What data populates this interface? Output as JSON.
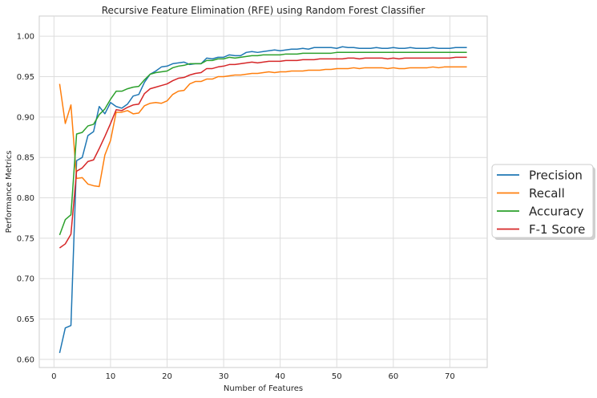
{
  "chart_data": {
    "type": "line",
    "title": "Recursive Feature Elimination (RFE) using Random Forest Classifier",
    "xlabel": "Number of Features",
    "ylabel": "Performance Metrics",
    "xlim": [
      -2.6,
      76.6
    ],
    "ylim": [
      0.59,
      1.025
    ],
    "xticks": [
      0,
      10,
      20,
      30,
      40,
      50,
      60,
      70
    ],
    "yticks": [
      0.6,
      0.65,
      0.7,
      0.75,
      0.8,
      0.85,
      0.9,
      0.95,
      1.0
    ],
    "ytick_labels": [
      "0.60",
      "0.65",
      "0.70",
      "0.75",
      "0.80",
      "0.85",
      "0.90",
      "0.95",
      "1.00"
    ],
    "grid": true,
    "legend_position": "outside-right",
    "x": [
      1,
      2,
      3,
      4,
      5,
      6,
      7,
      8,
      9,
      10,
      11,
      12,
      13,
      14,
      15,
      16,
      17,
      18,
      19,
      20,
      21,
      22,
      23,
      24,
      25,
      26,
      27,
      28,
      29,
      30,
      31,
      32,
      33,
      34,
      35,
      36,
      37,
      38,
      39,
      40,
      41,
      42,
      43,
      44,
      45,
      46,
      47,
      48,
      49,
      50,
      51,
      52,
      53,
      54,
      55,
      56,
      57,
      58,
      59,
      60,
      61,
      62,
      63,
      64,
      65,
      66,
      67,
      68,
      69,
      70,
      71,
      72,
      73
    ],
    "series": [
      {
        "name": "Precision",
        "color": "#1f77b4",
        "values": [
          0.608,
          0.639,
          0.642,
          0.846,
          0.85,
          0.877,
          0.882,
          0.913,
          0.904,
          0.918,
          0.913,
          0.911,
          0.916,
          0.926,
          0.928,
          0.943,
          0.953,
          0.957,
          0.962,
          0.963,
          0.966,
          0.967,
          0.968,
          0.965,
          0.966,
          0.966,
          0.973,
          0.972,
          0.974,
          0.974,
          0.977,
          0.976,
          0.976,
          0.98,
          0.981,
          0.98,
          0.981,
          0.982,
          0.983,
          0.982,
          0.983,
          0.984,
          0.984,
          0.985,
          0.984,
          0.986,
          0.986,
          0.986,
          0.986,
          0.985,
          0.987,
          0.986,
          0.986,
          0.985,
          0.985,
          0.985,
          0.986,
          0.985,
          0.985,
          0.986,
          0.985,
          0.985,
          0.986,
          0.985,
          0.985,
          0.985,
          0.986,
          0.985,
          0.985,
          0.985,
          0.986,
          0.986,
          0.986
        ]
      },
      {
        "name": "Recall",
        "color": "#ff7f0e",
        "values": [
          0.941,
          0.892,
          0.915,
          0.824,
          0.825,
          0.817,
          0.815,
          0.814,
          0.853,
          0.871,
          0.906,
          0.906,
          0.908,
          0.904,
          0.905,
          0.914,
          0.917,
          0.918,
          0.917,
          0.92,
          0.928,
          0.932,
          0.933,
          0.941,
          0.944,
          0.944,
          0.947,
          0.947,
          0.95,
          0.95,
          0.951,
          0.952,
          0.952,
          0.953,
          0.954,
          0.954,
          0.955,
          0.956,
          0.955,
          0.956,
          0.956,
          0.957,
          0.957,
          0.957,
          0.958,
          0.958,
          0.958,
          0.959,
          0.959,
          0.96,
          0.96,
          0.96,
          0.961,
          0.96,
          0.961,
          0.961,
          0.961,
          0.961,
          0.96,
          0.961,
          0.96,
          0.96,
          0.961,
          0.961,
          0.961,
          0.961,
          0.962,
          0.961,
          0.962,
          0.962,
          0.962,
          0.962,
          0.962
        ]
      },
      {
        "name": "Accuracy",
        "color": "#2ca02c",
        "values": [
          0.754,
          0.773,
          0.779,
          0.879,
          0.881,
          0.889,
          0.891,
          0.903,
          0.91,
          0.922,
          0.932,
          0.932,
          0.935,
          0.937,
          0.938,
          0.946,
          0.953,
          0.955,
          0.956,
          0.957,
          0.961,
          0.963,
          0.964,
          0.966,
          0.966,
          0.966,
          0.97,
          0.97,
          0.972,
          0.972,
          0.974,
          0.973,
          0.974,
          0.975,
          0.976,
          0.976,
          0.977,
          0.977,
          0.977,
          0.977,
          0.978,
          0.978,
          0.978,
          0.979,
          0.979,
          0.979,
          0.979,
          0.979,
          0.979,
          0.98,
          0.98,
          0.98,
          0.98,
          0.98,
          0.98,
          0.98,
          0.98,
          0.98,
          0.98,
          0.98,
          0.98,
          0.98,
          0.98,
          0.98,
          0.98,
          0.98,
          0.98,
          0.98,
          0.98,
          0.98,
          0.98,
          0.98,
          0.98
        ]
      },
      {
        "name": "F-1 Score",
        "color": "#d62728",
        "values": [
          0.738,
          0.743,
          0.755,
          0.833,
          0.837,
          0.845,
          0.847,
          0.861,
          0.876,
          0.892,
          0.909,
          0.908,
          0.912,
          0.915,
          0.916,
          0.929,
          0.935,
          0.937,
          0.939,
          0.941,
          0.945,
          0.948,
          0.949,
          0.952,
          0.954,
          0.955,
          0.96,
          0.96,
          0.962,
          0.963,
          0.965,
          0.965,
          0.966,
          0.967,
          0.968,
          0.967,
          0.968,
          0.969,
          0.969,
          0.969,
          0.97,
          0.97,
          0.97,
          0.971,
          0.971,
          0.971,
          0.972,
          0.972,
          0.972,
          0.972,
          0.972,
          0.973,
          0.973,
          0.972,
          0.973,
          0.973,
          0.973,
          0.973,
          0.972,
          0.973,
          0.972,
          0.973,
          0.973,
          0.973,
          0.973,
          0.973,
          0.973,
          0.973,
          0.973,
          0.973,
          0.974,
          0.974,
          0.974
        ]
      }
    ]
  }
}
